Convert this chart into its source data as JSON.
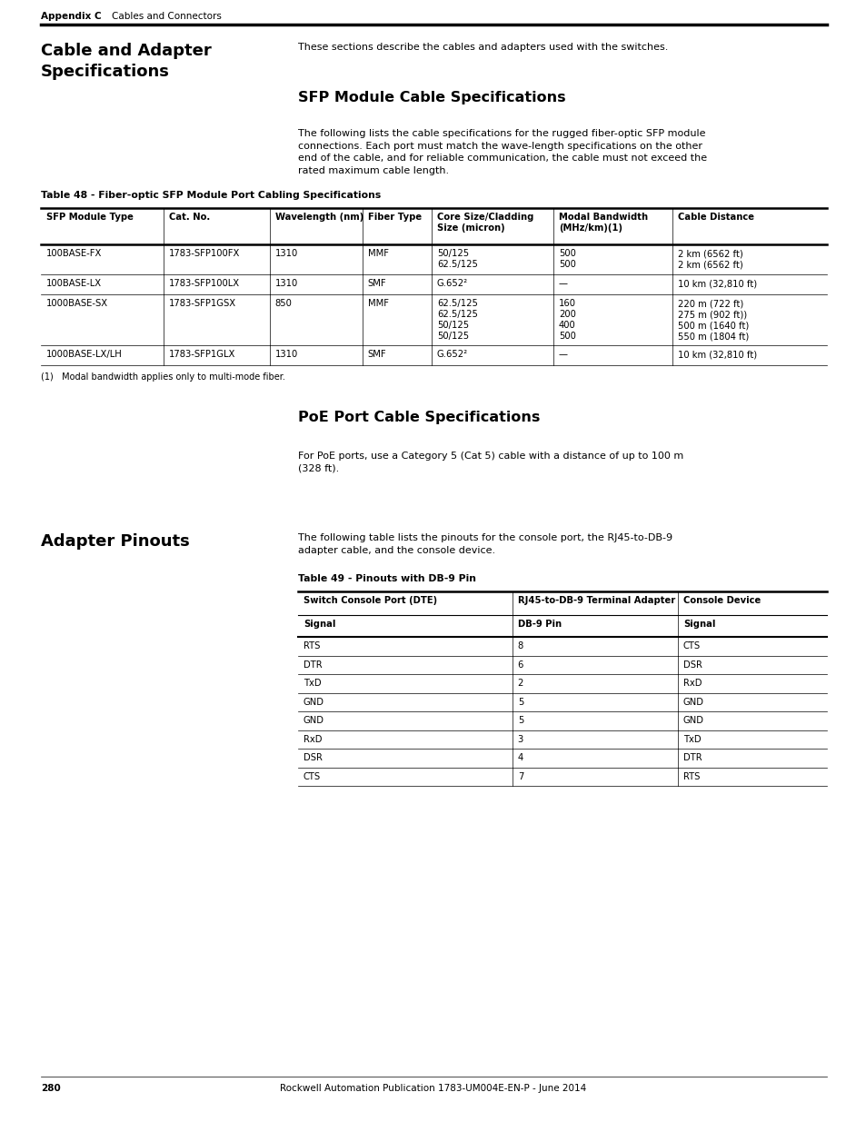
{
  "page_width": 9.54,
  "page_height": 12.35,
  "bg_color": "#ffffff",
  "header_label": "Appendix C",
  "header_section": "Cables and Connectors",
  "section1_title": "Cable and Adapter\nSpecifications",
  "section1_intro": "These sections describe the cables and adapters used with the switches.",
  "sfp_title": "SFP Module Cable Specifications",
  "sfp_intro": "The following lists the cable specifications for the rugged fiber-optic SFP module\nconnections. Each port must match the wave-length specifications on the other\nend of the cable, and for reliable communication, the cable must not exceed the\nrated maximum cable length.",
  "table48_title": "Table 48 - Fiber-optic SFP Module Port Cabling Specifications",
  "table48_headers": [
    "SFP Module Type",
    "Cat. No.",
    "Wavelength (nm)",
    "Fiber Type",
    "Core Size/Cladding\nSize (micron)",
    "Modal Bandwidth\n(MHz/km)(1)",
    "Cable Distance"
  ],
  "table48_rows": [
    [
      "100BASE-FX",
      "1783-SFP100FX",
      "1310",
      "MMF",
      "50/125\n62.5/125",
      "500\n500",
      "2 km (6562 ft)\n2 km (6562 ft)"
    ],
    [
      "100BASE-LX",
      "1783-SFP100LX",
      "1310",
      "SMF",
      "G.652²",
      "—",
      "10 km (32,810 ft)"
    ],
    [
      "1000BASE-SX",
      "1783-SFP1GSX",
      "850",
      "MMF",
      "62.5/125\n62.5/125\n50/125\n50/125",
      "160\n200\n400\n500",
      "220 m (722 ft)\n275 m (902 ft))\n500 m (1640 ft)\n550 m (1804 ft)"
    ],
    [
      "1000BASE-LX/LH",
      "1783-SFP1GLX",
      "1310",
      "SMF",
      "G.652²",
      "—",
      "10 km (32,810 ft)"
    ]
  ],
  "table48_footnote": "(1)   Modal bandwidth applies only to multi-mode fiber.",
  "poe_title": "PoE Port Cable Specifications",
  "poe_text": "For PoE ports, use a Category 5 (Cat 5) cable with a distance of up to 100 m\n(328 ft).",
  "section2_title": "Adapter Pinouts",
  "adapter_intro": "The following table lists the pinouts for the console port, the RJ45-to-DB-9\nadapter cable, and the console device.",
  "table49_title": "Table 49 - Pinouts with DB-9 Pin",
  "table49_col_headers": [
    "Switch Console Port (DTE)",
    "RJ45-to-DB-9 Terminal Adapter",
    "Console Device"
  ],
  "table49_sub_headers": [
    "Signal",
    "DB-9 Pin",
    "Signal"
  ],
  "table49_rows": [
    [
      "RTS",
      "8",
      "CTS"
    ],
    [
      "DTR",
      "6",
      "DSR"
    ],
    [
      "TxD",
      "2",
      "RxD"
    ],
    [
      "GND",
      "5",
      "GND"
    ],
    [
      "GND",
      "5",
      "GND"
    ],
    [
      "RxD",
      "3",
      "TxD"
    ],
    [
      "DSR",
      "4",
      "DTR"
    ],
    [
      "CTS",
      "7",
      "RTS"
    ]
  ],
  "footer_num": "280",
  "footer_text": "Rockwell Automation Publication 1783-UM004E-EN-P - June 2014"
}
